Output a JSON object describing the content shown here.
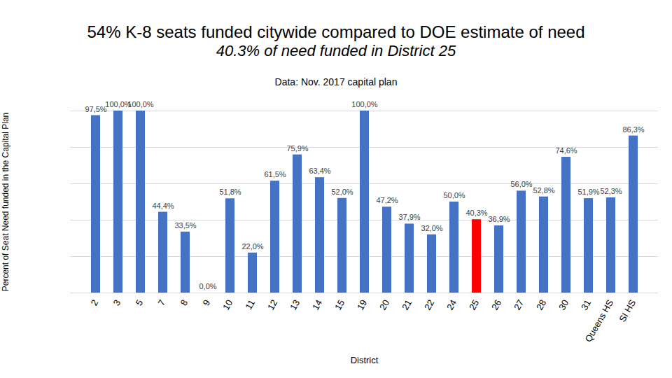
{
  "chart_data": {
    "type": "bar",
    "title": "54% K-8 seats funded citywide compared to DOE estimate of need",
    "subtitle": "40.3% of need funded in District 25",
    "caption": "Data: Nov. 2017 capital plan",
    "x_label": "District",
    "y_label": "Percent of Seat Need funded in the Capital Plan",
    "categories": [
      "2",
      "3",
      "5",
      "7",
      "8",
      "9",
      "10",
      "11",
      "12",
      "13",
      "14",
      "15",
      "19",
      "20",
      "21",
      "22",
      "24",
      "25",
      "26",
      "27",
      "28",
      "30",
      "31",
      "Queens HS",
      "SI HS"
    ],
    "values": [
      97.5,
      100.0,
      100.0,
      44.4,
      33.5,
      0.0,
      51.8,
      22.0,
      61.5,
      75.9,
      63.4,
      52.0,
      100.0,
      47.2,
      37.9,
      32.0,
      50.0,
      40.3,
      36.9,
      56.0,
      52.8,
      74.6,
      51.9,
      52.3,
      86.3
    ],
    "value_labels": [
      "97,5%",
      "100,0%",
      "100,0%",
      "44,4%",
      "33,5%",
      "0,0%",
      "51,8%",
      "22,0%",
      "61,5%",
      "75,9%",
      "63,4%",
      "52,0%",
      "100,0%",
      "47,2%",
      "37,9%",
      "32,0%",
      "50,0%",
      "40,3%",
      "36,9%",
      "56,0%",
      "52,8%",
      "74,6%",
      "51,9%",
      "52,3%",
      "86,3%"
    ],
    "colors": [
      "#4472c4",
      "#4472c4",
      "#4472c4",
      "#4472c4",
      "#4472c4",
      "#4472c4",
      "#4472c4",
      "#4472c4",
      "#4472c4",
      "#4472c4",
      "#4472c4",
      "#4472c4",
      "#4472c4",
      "#4472c4",
      "#4472c4",
      "#4472c4",
      "#4472c4",
      "#ff0000",
      "#4472c4",
      "#4472c4",
      "#4472c4",
      "#4472c4",
      "#4472c4",
      "#4472c4",
      "#4472c4"
    ],
    "ylim": [
      0,
      100
    ],
    "yticks": [
      0,
      20,
      40,
      60,
      80,
      100
    ],
    "grid": true,
    "data_labels": true,
    "tick_labels": "x"
  }
}
